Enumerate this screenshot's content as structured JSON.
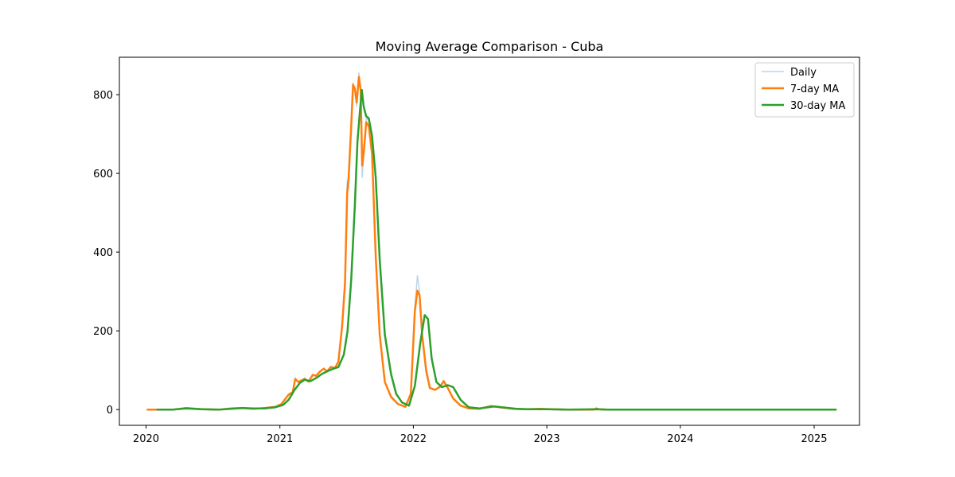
{
  "chart_data": {
    "type": "line",
    "title": "Moving Average Comparison - Cuba",
    "xlabel": "",
    "ylabel": "",
    "x_axis_type": "date",
    "xlim": [
      "2019-10-20",
      "2025-05-05"
    ],
    "ylim": [
      -40,
      895
    ],
    "x_ticks": [
      {
        "date": "2020-01-01",
        "label": "2020"
      },
      {
        "date": "2021-01-01",
        "label": "2021"
      },
      {
        "date": "2022-01-01",
        "label": "2022"
      },
      {
        "date": "2023-01-01",
        "label": "2023"
      },
      {
        "date": "2024-01-01",
        "label": "2024"
      },
      {
        "date": "2025-01-01",
        "label": "2025"
      }
    ],
    "y_ticks": [
      0,
      200,
      400,
      600,
      800
    ],
    "grid": false,
    "legend_position": "top-right",
    "series": [
      {
        "name": "Daily",
        "color": "#1f77b4",
        "opacity": 0.3,
        "width": 1.5,
        "points": [
          [
            "2020-01-05",
            0
          ],
          [
            "2020-02-01",
            0
          ],
          [
            "2020-03-15",
            0
          ],
          [
            "2020-04-20",
            5
          ],
          [
            "2020-06-01",
            1
          ],
          [
            "2020-07-20",
            0
          ],
          [
            "2020-08-20",
            3
          ],
          [
            "2020-09-20",
            5
          ],
          [
            "2020-10-20",
            2
          ],
          [
            "2020-11-20",
            4
          ],
          [
            "2020-12-20",
            8
          ],
          [
            "2021-01-05",
            15
          ],
          [
            "2021-01-25",
            40
          ],
          [
            "2021-02-05",
            45
          ],
          [
            "2021-02-12",
            80
          ],
          [
            "2021-02-20",
            70
          ],
          [
            "2021-03-01",
            75
          ],
          [
            "2021-03-10",
            80
          ],
          [
            "2021-03-20",
            70
          ],
          [
            "2021-04-01",
            90
          ],
          [
            "2021-04-10",
            85
          ],
          [
            "2021-04-20",
            95
          ],
          [
            "2021-05-01",
            105
          ],
          [
            "2021-05-10",
            95
          ],
          [
            "2021-05-20",
            110
          ],
          [
            "2021-06-01",
            105
          ],
          [
            "2021-06-10",
            125
          ],
          [
            "2021-06-20",
            220
          ],
          [
            "2021-06-28",
            330
          ],
          [
            "2021-07-04",
            580
          ],
          [
            "2021-07-08",
            560
          ],
          [
            "2021-07-15",
            740
          ],
          [
            "2021-07-20",
            830
          ],
          [
            "2021-07-25",
            810
          ],
          [
            "2021-07-30",
            770
          ],
          [
            "2021-08-05",
            855
          ],
          [
            "2021-08-10",
            820
          ],
          [
            "2021-08-14",
            590
          ],
          [
            "2021-08-18",
            640
          ],
          [
            "2021-08-25",
            740
          ],
          [
            "2021-09-01",
            735
          ],
          [
            "2021-09-10",
            660
          ],
          [
            "2021-09-20",
            400
          ],
          [
            "2021-10-01",
            190
          ],
          [
            "2021-10-15",
            70
          ],
          [
            "2021-11-01",
            35
          ],
          [
            "2021-11-20",
            15
          ],
          [
            "2021-12-10",
            8
          ],
          [
            "2021-12-25",
            40
          ],
          [
            "2022-01-05",
            260
          ],
          [
            "2022-01-12",
            340
          ],
          [
            "2022-01-18",
            300
          ],
          [
            "2022-01-25",
            180
          ],
          [
            "2022-02-05",
            90
          ],
          [
            "2022-02-15",
            55
          ],
          [
            "2022-03-01",
            50
          ],
          [
            "2022-03-15",
            60
          ],
          [
            "2022-03-25",
            75
          ],
          [
            "2022-04-05",
            55
          ],
          [
            "2022-04-20",
            28
          ],
          [
            "2022-05-10",
            10
          ],
          [
            "2022-06-01",
            3
          ],
          [
            "2022-07-01",
            2
          ],
          [
            "2022-08-01",
            10
          ],
          [
            "2022-09-01",
            5
          ],
          [
            "2022-10-01",
            2
          ],
          [
            "2022-11-01",
            1
          ],
          [
            "2022-12-15",
            2
          ],
          [
            "2023-01-15",
            1
          ],
          [
            "2023-03-01",
            0
          ],
          [
            "2023-05-10",
            0
          ],
          [
            "2023-05-16",
            4
          ],
          [
            "2023-05-22",
            1
          ],
          [
            "2023-06-15",
            0
          ],
          [
            "2024-01-01",
            0
          ],
          [
            "2025-03-01",
            0
          ]
        ]
      },
      {
        "name": "7-day MA",
        "color": "#ff7f0e",
        "opacity": 1,
        "width": 2.5,
        "points": [
          [
            "2020-01-05",
            0
          ],
          [
            "2020-02-01",
            0
          ],
          [
            "2020-03-15",
            0
          ],
          [
            "2020-04-20",
            4
          ],
          [
            "2020-06-01",
            1
          ],
          [
            "2020-07-20",
            0
          ],
          [
            "2020-08-20",
            3
          ],
          [
            "2020-09-20",
            4
          ],
          [
            "2020-10-20",
            2
          ],
          [
            "2020-11-20",
            4
          ],
          [
            "2020-12-20",
            7
          ],
          [
            "2021-01-05",
            14
          ],
          [
            "2021-01-25",
            38
          ],
          [
            "2021-02-05",
            44
          ],
          [
            "2021-02-12",
            78
          ],
          [
            "2021-02-20",
            70
          ],
          [
            "2021-03-01",
            74
          ],
          [
            "2021-03-10",
            78
          ],
          [
            "2021-03-20",
            71
          ],
          [
            "2021-04-01",
            88
          ],
          [
            "2021-04-10",
            86
          ],
          [
            "2021-04-20",
            96
          ],
          [
            "2021-05-01",
            104
          ],
          [
            "2021-05-10",
            97
          ],
          [
            "2021-05-20",
            108
          ],
          [
            "2021-06-01",
            106
          ],
          [
            "2021-06-10",
            122
          ],
          [
            "2021-06-20",
            210
          ],
          [
            "2021-06-28",
            320
          ],
          [
            "2021-07-04",
            550
          ],
          [
            "2021-07-08",
            590
          ],
          [
            "2021-07-15",
            720
          ],
          [
            "2021-07-20",
            825
          ],
          [
            "2021-07-25",
            815
          ],
          [
            "2021-07-30",
            780
          ],
          [
            "2021-08-05",
            845
          ],
          [
            "2021-08-10",
            810
          ],
          [
            "2021-08-14",
            620
          ],
          [
            "2021-08-18",
            650
          ],
          [
            "2021-08-25",
            730
          ],
          [
            "2021-09-01",
            720
          ],
          [
            "2021-09-10",
            650
          ],
          [
            "2021-09-20",
            390
          ],
          [
            "2021-10-01",
            190
          ],
          [
            "2021-10-15",
            70
          ],
          [
            "2021-11-01",
            32
          ],
          [
            "2021-11-20",
            14
          ],
          [
            "2021-12-10",
            7
          ],
          [
            "2021-12-25",
            40
          ],
          [
            "2022-01-05",
            250
          ],
          [
            "2022-01-12",
            302
          ],
          [
            "2022-01-18",
            290
          ],
          [
            "2022-01-25",
            190
          ],
          [
            "2022-02-05",
            100
          ],
          [
            "2022-02-15",
            55
          ],
          [
            "2022-03-01",
            50
          ],
          [
            "2022-03-15",
            58
          ],
          [
            "2022-03-25",
            72
          ],
          [
            "2022-04-05",
            55
          ],
          [
            "2022-04-20",
            28
          ],
          [
            "2022-05-10",
            10
          ],
          [
            "2022-06-01",
            3
          ],
          [
            "2022-07-01",
            2
          ],
          [
            "2022-08-01",
            9
          ],
          [
            "2022-09-01",
            5
          ],
          [
            "2022-10-01",
            2
          ],
          [
            "2022-11-01",
            1
          ],
          [
            "2022-12-15",
            2
          ],
          [
            "2023-01-15",
            1
          ],
          [
            "2023-03-01",
            0
          ],
          [
            "2023-05-10",
            0
          ],
          [
            "2023-05-16",
            3
          ],
          [
            "2023-05-22",
            1
          ],
          [
            "2023-06-15",
            0
          ],
          [
            "2024-01-01",
            0
          ],
          [
            "2025-03-01",
            0
          ]
        ]
      },
      {
        "name": "30-day MA",
        "color": "#2ca02c",
        "opacity": 1,
        "width": 2.5,
        "points": [
          [
            "2020-02-01",
            0
          ],
          [
            "2020-03-15",
            0
          ],
          [
            "2020-04-20",
            3
          ],
          [
            "2020-06-01",
            1
          ],
          [
            "2020-07-20",
            0
          ],
          [
            "2020-08-20",
            2
          ],
          [
            "2020-09-20",
            4
          ],
          [
            "2020-10-20",
            3
          ],
          [
            "2020-11-20",
            3
          ],
          [
            "2020-12-20",
            6
          ],
          [
            "2021-01-10",
            12
          ],
          [
            "2021-01-25",
            25
          ],
          [
            "2021-02-10",
            50
          ],
          [
            "2021-02-25",
            68
          ],
          [
            "2021-03-10",
            76
          ],
          [
            "2021-03-25",
            72
          ],
          [
            "2021-04-10",
            80
          ],
          [
            "2021-04-25",
            90
          ],
          [
            "2021-05-10",
            97
          ],
          [
            "2021-05-25",
            103
          ],
          [
            "2021-06-10",
            108
          ],
          [
            "2021-06-25",
            140
          ],
          [
            "2021-07-05",
            200
          ],
          [
            "2021-07-15",
            330
          ],
          [
            "2021-07-25",
            520
          ],
          [
            "2021-08-01",
            680
          ],
          [
            "2021-08-08",
            760
          ],
          [
            "2021-08-13",
            812
          ],
          [
            "2021-08-18",
            770
          ],
          [
            "2021-08-25",
            745
          ],
          [
            "2021-09-01",
            740
          ],
          [
            "2021-09-10",
            695
          ],
          [
            "2021-09-20",
            590
          ],
          [
            "2021-10-01",
            380
          ],
          [
            "2021-10-15",
            190
          ],
          [
            "2021-11-01",
            90
          ],
          [
            "2021-11-15",
            40
          ],
          [
            "2021-12-01",
            18
          ],
          [
            "2021-12-20",
            10
          ],
          [
            "2022-01-05",
            60
          ],
          [
            "2022-01-20",
            170
          ],
          [
            "2022-02-01",
            240
          ],
          [
            "2022-02-10",
            230
          ],
          [
            "2022-02-20",
            130
          ],
          [
            "2022-03-05",
            70
          ],
          [
            "2022-03-20",
            57
          ],
          [
            "2022-04-05",
            62
          ],
          [
            "2022-04-20",
            57
          ],
          [
            "2022-05-10",
            25
          ],
          [
            "2022-06-01",
            6
          ],
          [
            "2022-07-01",
            3
          ],
          [
            "2022-08-10",
            8
          ],
          [
            "2022-09-10",
            5
          ],
          [
            "2022-10-10",
            2
          ],
          [
            "2022-11-10",
            1
          ],
          [
            "2023-01-01",
            1
          ],
          [
            "2023-03-01",
            0
          ],
          [
            "2023-05-16",
            1
          ],
          [
            "2023-06-15",
            0
          ],
          [
            "2024-01-01",
            0
          ],
          [
            "2025-03-01",
            0
          ]
        ]
      }
    ]
  }
}
